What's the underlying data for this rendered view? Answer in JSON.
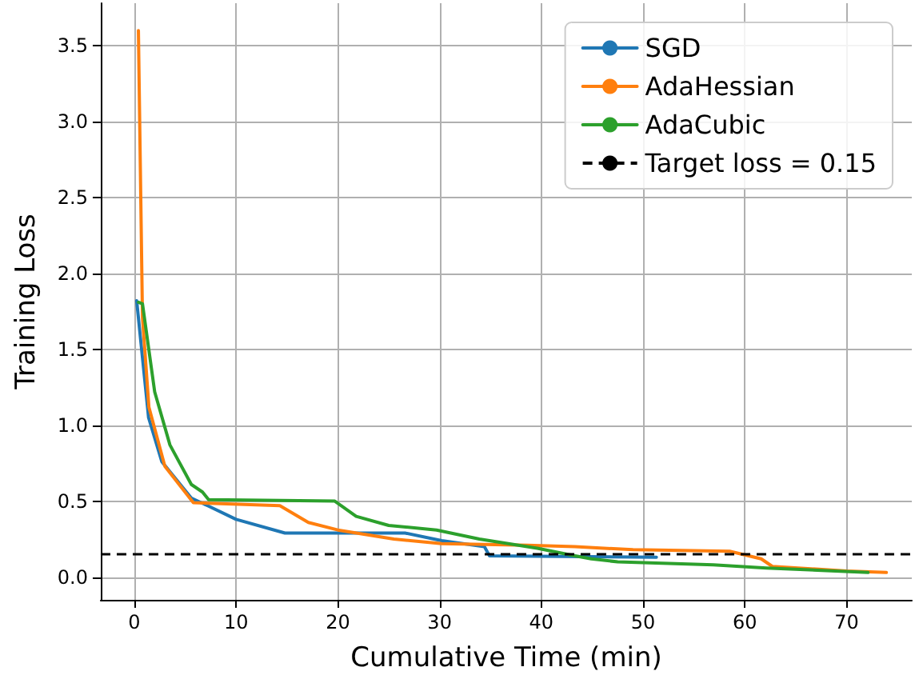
{
  "chart_data": {
    "type": "line",
    "xlabel": "Cumulative Time (min)",
    "ylabel": "Training Loss",
    "xlim": [
      -3.3,
      76.4
    ],
    "ylim": [
      -0.15,
      3.78
    ],
    "xticks": [
      0,
      10,
      20,
      30,
      40,
      50,
      60,
      70
    ],
    "yticks": [
      {
        "value": 0,
        "label": "0.0"
      },
      {
        "value": 0.5,
        "label": "0.5"
      },
      {
        "value": 1,
        "label": "1.0"
      },
      {
        "value": 1.5,
        "label": "1.5"
      },
      {
        "value": 2,
        "label": "2.0"
      },
      {
        "value": 2.5,
        "label": "2.5"
      },
      {
        "value": 3,
        "label": "3.0"
      },
      {
        "value": 3.5,
        "label": "3.5"
      }
    ],
    "grid": true,
    "legend": "top right",
    "line_style": "solid",
    "marker": "none",
    "series": [
      {
        "name": "SGD",
        "color": "#1f77b4",
        "x": [
          0.23,
          1.4,
          2.7,
          5.6,
          7.2,
          10,
          14.8,
          26.6,
          30.2,
          34.4,
          34.9,
          51.3
        ],
        "values": [
          1.82,
          1.05,
          0.76,
          0.52,
          0.47,
          0.38,
          0.29,
          0.29,
          0.24,
          0.2,
          0.14,
          0.13
        ]
      },
      {
        "name": "AdaHessian",
        "color": "#ff7f0e",
        "x": [
          0.4,
          0.8,
          1.43,
          3.0,
          5.8,
          14.3,
          17.1,
          20.0,
          25.5,
          30.2,
          38.6,
          43.3,
          49,
          58.5,
          61.6,
          62.7,
          70,
          73.9
        ],
        "values": [
          3.6,
          1.71,
          1.12,
          0.73,
          0.49,
          0.47,
          0.36,
          0.31,
          0.25,
          0.22,
          0.21,
          0.2,
          0.18,
          0.17,
          0.12,
          0.07,
          0.04,
          0.03
        ]
      },
      {
        "name": "AdaCubic",
        "color": "#2ca02c",
        "x": [
          0.4,
          0.8,
          2.0,
          3.5,
          5.6,
          6.7,
          7.3,
          19.7,
          21.8,
          25,
          29.7,
          33.9,
          39.6,
          43.3,
          44.9,
          47.5,
          56.9,
          62.1,
          72.1
        ],
        "values": [
          1.81,
          1.8,
          1.22,
          0.87,
          0.61,
          0.56,
          0.51,
          0.5,
          0.4,
          0.34,
          0.31,
          0.25,
          0.19,
          0.14,
          0.12,
          0.1,
          0.08,
          0.06,
          0.03
        ]
      }
    ],
    "ref_lines": [
      {
        "axis": "y",
        "value": 0.15,
        "label": "Target loss = 0.15",
        "color": "#000000",
        "line_style": "dashed"
      }
    ]
  }
}
